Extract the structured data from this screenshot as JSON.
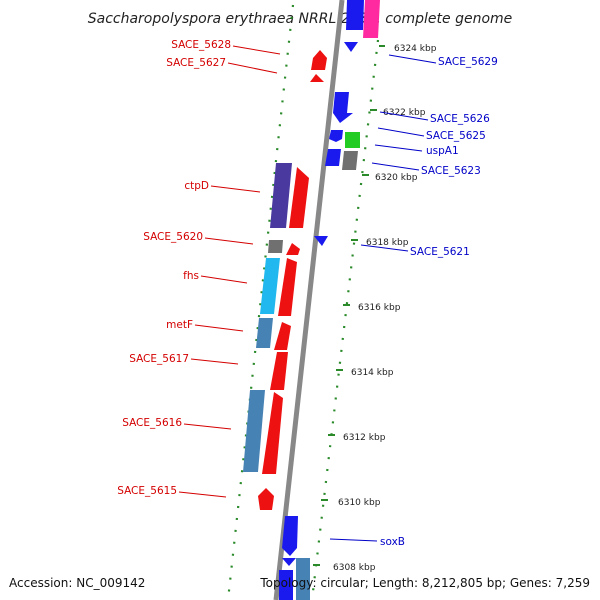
{
  "title": "Saccharopolyspora erythraea NRRL 2338, complete genome",
  "footer": {
    "accession": "Accession: NC_009142",
    "topology": "Topology: circular; Length: 8,212,805 bp; Genes: 7,259"
  },
  "colors": {
    "label_left": "#d40000",
    "label_right": "#0000c8",
    "backbone": "#888888",
    "tick_green": "#2a8a2a"
  },
  "tick_labels": [
    "6324 kbp",
    "6322 kbp",
    "6320 kbp",
    "6318 kbp",
    "6316 kbp",
    "6314 kbp",
    "6312 kbp",
    "6310 kbp",
    "6308 kbp"
  ],
  "left_labels": [
    "SACE_5628",
    "SACE_5627",
    "ctpD",
    "SACE_5620",
    "fhs",
    "metF",
    "SACE_5617",
    "SACE_5616",
    "SACE_5615"
  ],
  "right_labels": [
    "SACE_5629",
    "SACE_5626",
    "SACE_5625",
    "uspA1",
    "SACE_5623",
    "SACE_5621",
    "soxB"
  ]
}
